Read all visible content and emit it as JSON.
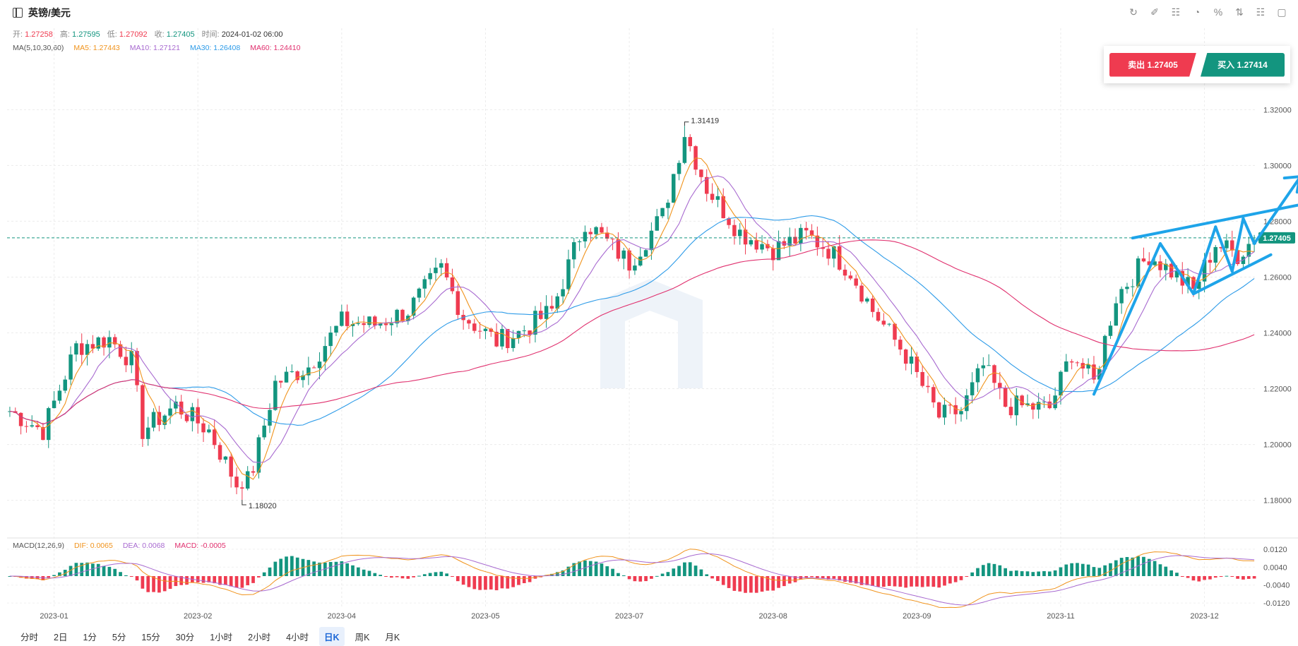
{
  "header": {
    "symbol": "英镑/美元",
    "toolbar_icons": [
      "refresh-icon",
      "draw-icon",
      "indicator-icon",
      "chart-type-icon",
      "percent-icon",
      "compare-icon",
      "settings-icon",
      "fullscreen-icon"
    ]
  },
  "ohlc": {
    "open_label": "开:",
    "open": "1.27258",
    "high_label": "高:",
    "high": "1.27595",
    "low_label": "低:",
    "low": "1.27092",
    "close_label": "收:",
    "close": "1.27405",
    "time_label": "时间:",
    "time": "2024-01-02 06:00"
  },
  "ma": {
    "title": "MA(5,10,30,60)",
    "ma5": "MA5: 1.27443",
    "ma10": "MA10: 1.27121",
    "ma30": "MA30: 1.26408",
    "ma60": "MA60: 1.24410"
  },
  "macd": {
    "title": "MACD(12,26,9)",
    "dif": "DIF: 0.0065",
    "dea": "DEA: 0.0068",
    "macd": "MACD: -0.0005"
  },
  "trade": {
    "sell": "卖出 1.27405",
    "buy": "买入 1.27414"
  },
  "periods": [
    {
      "label": "分时",
      "active": false
    },
    {
      "label": "2日",
      "active": false
    },
    {
      "label": "1分",
      "active": false
    },
    {
      "label": "5分",
      "active": false
    },
    {
      "label": "15分",
      "active": false
    },
    {
      "label": "30分",
      "active": false
    },
    {
      "label": "1小时",
      "active": false
    },
    {
      "label": "2小时",
      "active": false
    },
    {
      "label": "4小时",
      "active": false
    },
    {
      "label": "日K",
      "active": true
    },
    {
      "label": "周K",
      "active": false
    },
    {
      "label": "月K",
      "active": false
    }
  ],
  "colors": {
    "up": "#13957f",
    "down": "#ef3b50",
    "ma5": "#f0931c",
    "ma10": "#a86ad0",
    "ma30": "#2d9be8",
    "ma60": "#e0306e",
    "trendline": "#1ea4e9"
  },
  "chart_data": {
    "type": "candlestick",
    "price_axis": {
      "ticks": [
        "1.32000",
        "1.30000",
        "1.28000",
        "1.26000",
        "1.24000",
        "1.22000",
        "1.20000",
        "1.18000"
      ],
      "range": [
        1.167,
        1.334
      ],
      "current_price": "1.27405",
      "current_value": 1.27405
    },
    "macd_axis": {
      "ticks": [
        "0.0120",
        "0.0040",
        "-0.0040",
        "-0.0120"
      ],
      "range": [
        -0.0145,
        0.0145
      ]
    },
    "x_labels": [
      {
        "label": "2023-01",
        "index": 8
      },
      {
        "label": "2023-02",
        "index": 34
      },
      {
        "label": "2023-04",
        "index": 60
      },
      {
        "label": "2023-05",
        "index": 86
      },
      {
        "label": "2023-07",
        "index": 112
      },
      {
        "label": "2023-08",
        "index": 138
      },
      {
        "label": "2023-09",
        "index": 164
      },
      {
        "label": "2023-11",
        "index": 190
      },
      {
        "label": "2023-12",
        "index": 216
      }
    ],
    "candle_count": 226,
    "price_path": [
      [
        0,
        1.212
      ],
      [
        6,
        1.205
      ],
      [
        12,
        1.235
      ],
      [
        18,
        1.238
      ],
      [
        22,
        1.23
      ],
      [
        24,
        1.205
      ],
      [
        30,
        1.214
      ],
      [
        36,
        1.205
      ],
      [
        42,
        1.182
      ],
      [
        44,
        1.192
      ],
      [
        48,
        1.222
      ],
      [
        54,
        1.228
      ],
      [
        60,
        1.244
      ],
      [
        66,
        1.243
      ],
      [
        72,
        1.248
      ],
      [
        78,
        1.263
      ],
      [
        82,
        1.246
      ],
      [
        88,
        1.237
      ],
      [
        92,
        1.24
      ],
      [
        98,
        1.248
      ],
      [
        104,
        1.28
      ],
      [
        112,
        1.265
      ],
      [
        118,
        1.282
      ],
      [
        122,
        1.312
      ],
      [
        126,
        1.292
      ],
      [
        132,
        1.276
      ],
      [
        138,
        1.27
      ],
      [
        144,
        1.275
      ],
      [
        148,
        1.27
      ],
      [
        152,
        1.262
      ],
      [
        156,
        1.248
      ],
      [
        162,
        1.232
      ],
      [
        168,
        1.21
      ],
      [
        172,
        1.212
      ],
      [
        176,
        1.228
      ],
      [
        180,
        1.214
      ],
      [
        188,
        1.213
      ],
      [
        192,
        1.233
      ],
      [
        196,
        1.222
      ],
      [
        200,
        1.253
      ],
      [
        206,
        1.268
      ],
      [
        210,
        1.262
      ],
      [
        214,
        1.255
      ],
      [
        218,
        1.272
      ],
      [
        222,
        1.268
      ],
      [
        225,
        1.274
      ]
    ],
    "annotations": [
      {
        "text": "1.31419",
        "index": 122,
        "value": 1.31419,
        "type": "high"
      },
      {
        "text": "1.18020",
        "index": 42,
        "value": 1.1802,
        "type": "low"
      }
    ],
    "moving_averages": [
      "MA5",
      "MA10",
      "MA30",
      "MA60"
    ],
    "trendlines": [
      {
        "from": [
          196,
          1.218
        ],
        "to": [
          208,
          1.272
        ]
      },
      {
        "from": [
          208,
          1.272
        ],
        "to": [
          214,
          1.254
        ]
      },
      {
        "from": [
          214,
          1.254
        ],
        "to": [
          218,
          1.278
        ]
      },
      {
        "from": [
          218,
          1.278
        ],
        "to": [
          221,
          1.262
        ]
      },
      {
        "from": [
          221,
          1.262
        ],
        "to": [
          223,
          1.281
        ]
      },
      {
        "from": [
          223,
          1.281
        ],
        "to": [
          225,
          1.272
        ]
      },
      {
        "from": [
          203,
          1.274
        ],
        "to": [
          236,
          1.287
        ]
      },
      {
        "from": [
          214,
          1.254
        ],
        "to": [
          228,
          1.268
        ]
      },
      {
        "from": [
          225,
          1.272
        ],
        "to": [
          233,
          1.295
        ]
      }
    ]
  }
}
